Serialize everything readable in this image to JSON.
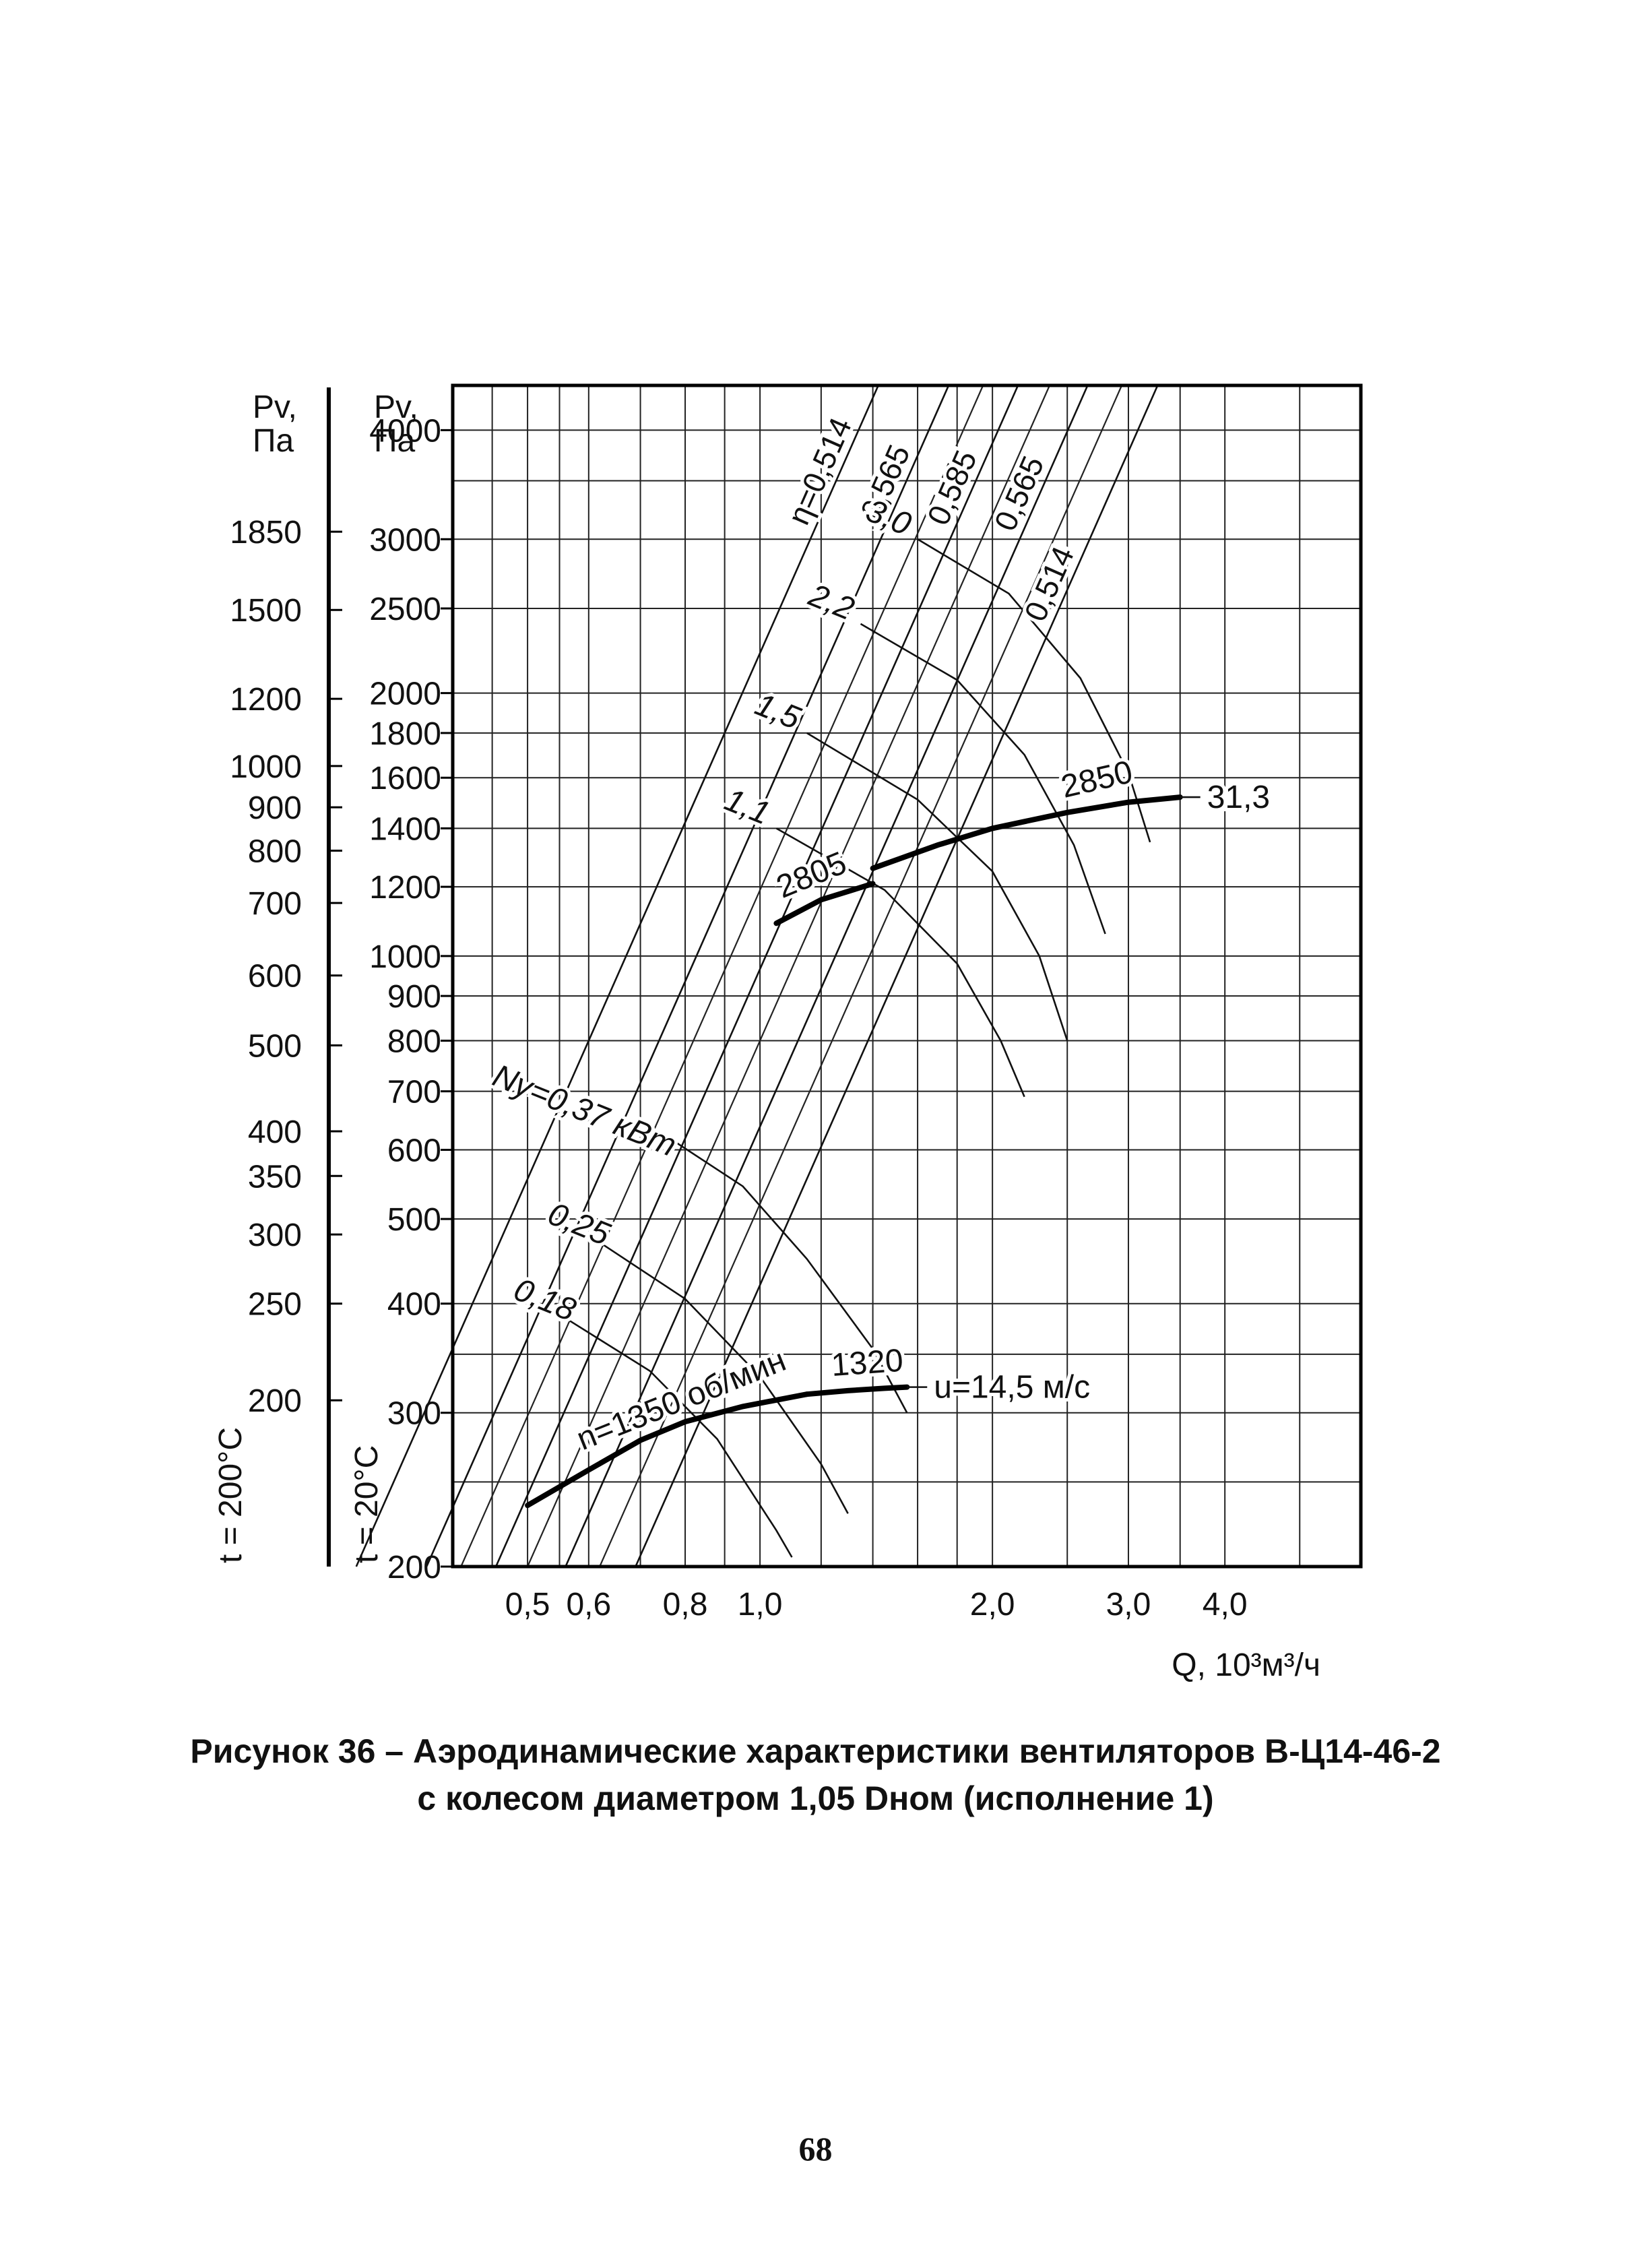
{
  "chart_data": {
    "type": "line",
    "title": "Рисунок 36 – Аэродинамические характеристики вентиляторов В-Ц14-46-2",
    "subtitle": "с колесом диаметром 1,05 Dном (исполнение 1)",
    "xlabel": "Q, 10³м³/ч",
    "x_scale": "log",
    "y_scale": "log",
    "xlim": [
      0.4,
      6.0
    ],
    "ylim": [
      200,
      4500
    ],
    "x_ticks": [
      {
        "v": 0.5,
        "label": "0,5"
      },
      {
        "v": 0.6,
        "label": "0,6"
      },
      {
        "v": 0.8,
        "label": "0,8"
      },
      {
        "v": 1.0,
        "label": "1,0"
      },
      {
        "v": 2.0,
        "label": "2,0"
      },
      {
        "v": 3.0,
        "label": "3,0"
      },
      {
        "v": 4.0,
        "label": "4,0"
      }
    ],
    "x_gridlines": [
      0.45,
      0.5,
      0.55,
      0.6,
      0.7,
      0.8,
      0.9,
      1.0,
      1.2,
      1.4,
      1.6,
      1.8,
      2.0,
      2.5,
      3.0,
      3.5,
      4.0,
      5.0
    ],
    "y_axis_20": {
      "label": "Pv, Па",
      "temp": "t = 20°C",
      "ticks": [
        {
          "v": 200,
          "label": "200"
        },
        {
          "v": 300,
          "label": "300"
        },
        {
          "v": 400,
          "label": "400"
        },
        {
          "v": 500,
          "label": "500"
        },
        {
          "v": 600,
          "label": "600"
        },
        {
          "v": 700,
          "label": "700"
        },
        {
          "v": 800,
          "label": "800"
        },
        {
          "v": 900,
          "label": "900"
        },
        {
          "v": 1000,
          "label": "1000"
        },
        {
          "v": 1200,
          "label": "1200"
        },
        {
          "v": 1400,
          "label": "1400"
        },
        {
          "v": 1600,
          "label": "1600"
        },
        {
          "v": 1800,
          "label": "1800"
        },
        {
          "v": 2000,
          "label": "2000"
        },
        {
          "v": 2500,
          "label": "2500"
        },
        {
          "v": 3000,
          "label": "3000"
        },
        {
          "v": 4000,
          "label": "4000"
        }
      ]
    },
    "y_gridlines": [
      200,
      250,
      300,
      350,
      400,
      500,
      600,
      700,
      800,
      900,
      1000,
      1200,
      1400,
      1600,
      1800,
      2000,
      2500,
      3000,
      3500,
      4000
    ],
    "y_axis_200": {
      "label": "Pv, Па",
      "temp": "t = 200°C",
      "ticks": [
        {
          "v": 200,
          "at": 310,
          "label": "200"
        },
        {
          "v": 250,
          "at": 400,
          "label": "250"
        },
        {
          "v": 300,
          "at": 480,
          "label": "300"
        },
        {
          "v": 350,
          "at": 560,
          "label": "350"
        },
        {
          "v": 400,
          "at": 630,
          "label": "400"
        },
        {
          "v": 500,
          "at": 790,
          "label": "500"
        },
        {
          "v": 600,
          "at": 950,
          "label": "600"
        },
        {
          "v": 700,
          "at": 1150,
          "label": "700"
        },
        {
          "v": 800,
          "at": 1320,
          "label": "800"
        },
        {
          "v": 900,
          "at": 1480,
          "label": "900"
        },
        {
          "v": 1000,
          "at": 1650,
          "label": "1000"
        },
        {
          "v": 1200,
          "at": 1970,
          "label": "1200"
        },
        {
          "v": 1500,
          "at": 2490,
          "label": "1500"
        },
        {
          "v": 1850,
          "at": 3060,
          "label": "1850"
        }
      ]
    },
    "efficiency_lines": {
      "slope": 2,
      "lines": [
        {
          "label": "η=0,514",
          "q_at_p200": 0.3
        },
        {
          "label": "0,565",
          "q_at_p200": 0.37
        },
        {
          "label": "0,585",
          "q_at_p200": 0.455
        },
        {
          "label": "0,565",
          "q_at_p200": 0.56
        },
        {
          "label": "0,514",
          "q_at_p200": 0.69
        }
      ],
      "extra_rays_q_at_p200": [
        0.41,
        0.5,
        0.62
      ]
    },
    "power_arcs": [
      {
        "label": "Nу=0,37 кВт",
        "points": [
          [
            0.74,
            630
          ],
          [
            0.95,
            545
          ],
          [
            1.15,
            450
          ],
          [
            1.4,
            355
          ],
          [
            1.55,
            300
          ]
        ]
      },
      {
        "label": "0,25",
        "points": [
          [
            0.62,
            470
          ],
          [
            0.8,
            405
          ],
          [
            1.0,
            330
          ],
          [
            1.2,
            262
          ],
          [
            1.3,
            230
          ]
        ]
      },
      {
        "label": "0,18",
        "points": [
          [
            0.56,
            385
          ],
          [
            0.72,
            335
          ],
          [
            0.88,
            280
          ],
          [
            1.05,
            220
          ],
          [
            1.1,
            205
          ]
        ]
      },
      {
        "label": "3,0",
        "points": [
          [
            1.6,
            3000
          ],
          [
            2.1,
            2600
          ],
          [
            2.6,
            2080
          ],
          [
            3.0,
            1620
          ],
          [
            3.2,
            1350
          ]
        ]
      },
      {
        "label": "2,2",
        "points": [
          [
            1.35,
            2400
          ],
          [
            1.8,
            2070
          ],
          [
            2.2,
            1700
          ],
          [
            2.55,
            1340
          ],
          [
            2.8,
            1060
          ]
        ]
      },
      {
        "label": "1,5",
        "points": [
          [
            1.15,
            1800
          ],
          [
            1.6,
            1510
          ],
          [
            2.0,
            1250
          ],
          [
            2.3,
            1000
          ],
          [
            2.5,
            800
          ]
        ]
      },
      {
        "label": "1,1",
        "points": [
          [
            1.05,
            1400
          ],
          [
            1.45,
            1190
          ],
          [
            1.8,
            980
          ],
          [
            2.05,
            800
          ],
          [
            2.2,
            690
          ]
        ]
      }
    ],
    "fan_curves": [
      {
        "label": "n=1350 об/мин",
        "points": [
          [
            0.5,
            235
          ],
          [
            0.6,
            258
          ],
          [
            0.7,
            279
          ],
          [
            0.8,
            293
          ],
          [
            0.95,
            305
          ],
          [
            1.15,
            315
          ]
        ]
      },
      {
        "label": "1320",
        "points": [
          [
            1.15,
            315
          ],
          [
            1.3,
            318
          ],
          [
            1.45,
            320
          ],
          [
            1.55,
            321
          ]
        ]
      },
      {
        "label": "2805",
        "points": [
          [
            1.05,
            1090
          ],
          [
            1.2,
            1160
          ],
          [
            1.4,
            1210
          ]
        ]
      },
      {
        "label": "2850",
        "points": [
          [
            1.4,
            1260
          ],
          [
            1.7,
            1340
          ],
          [
            2.0,
            1400
          ],
          [
            2.5,
            1460
          ],
          [
            3.0,
            1500
          ],
          [
            3.5,
            1520
          ]
        ]
      }
    ],
    "annotations": [
      {
        "text": "u=14,5 м/с",
        "anchor": [
          1.55,
          321
        ]
      },
      {
        "text": "31,3",
        "anchor": [
          3.5,
          1520
        ]
      }
    ]
  },
  "figure": {
    "caption_line1": "Рисунок 36 – Аэродинамические характеристики вентиляторов В-Ц14-46-2",
    "caption_line2": "с колесом диаметром 1,05 Dном (исполнение 1)",
    "page_number": "68"
  }
}
